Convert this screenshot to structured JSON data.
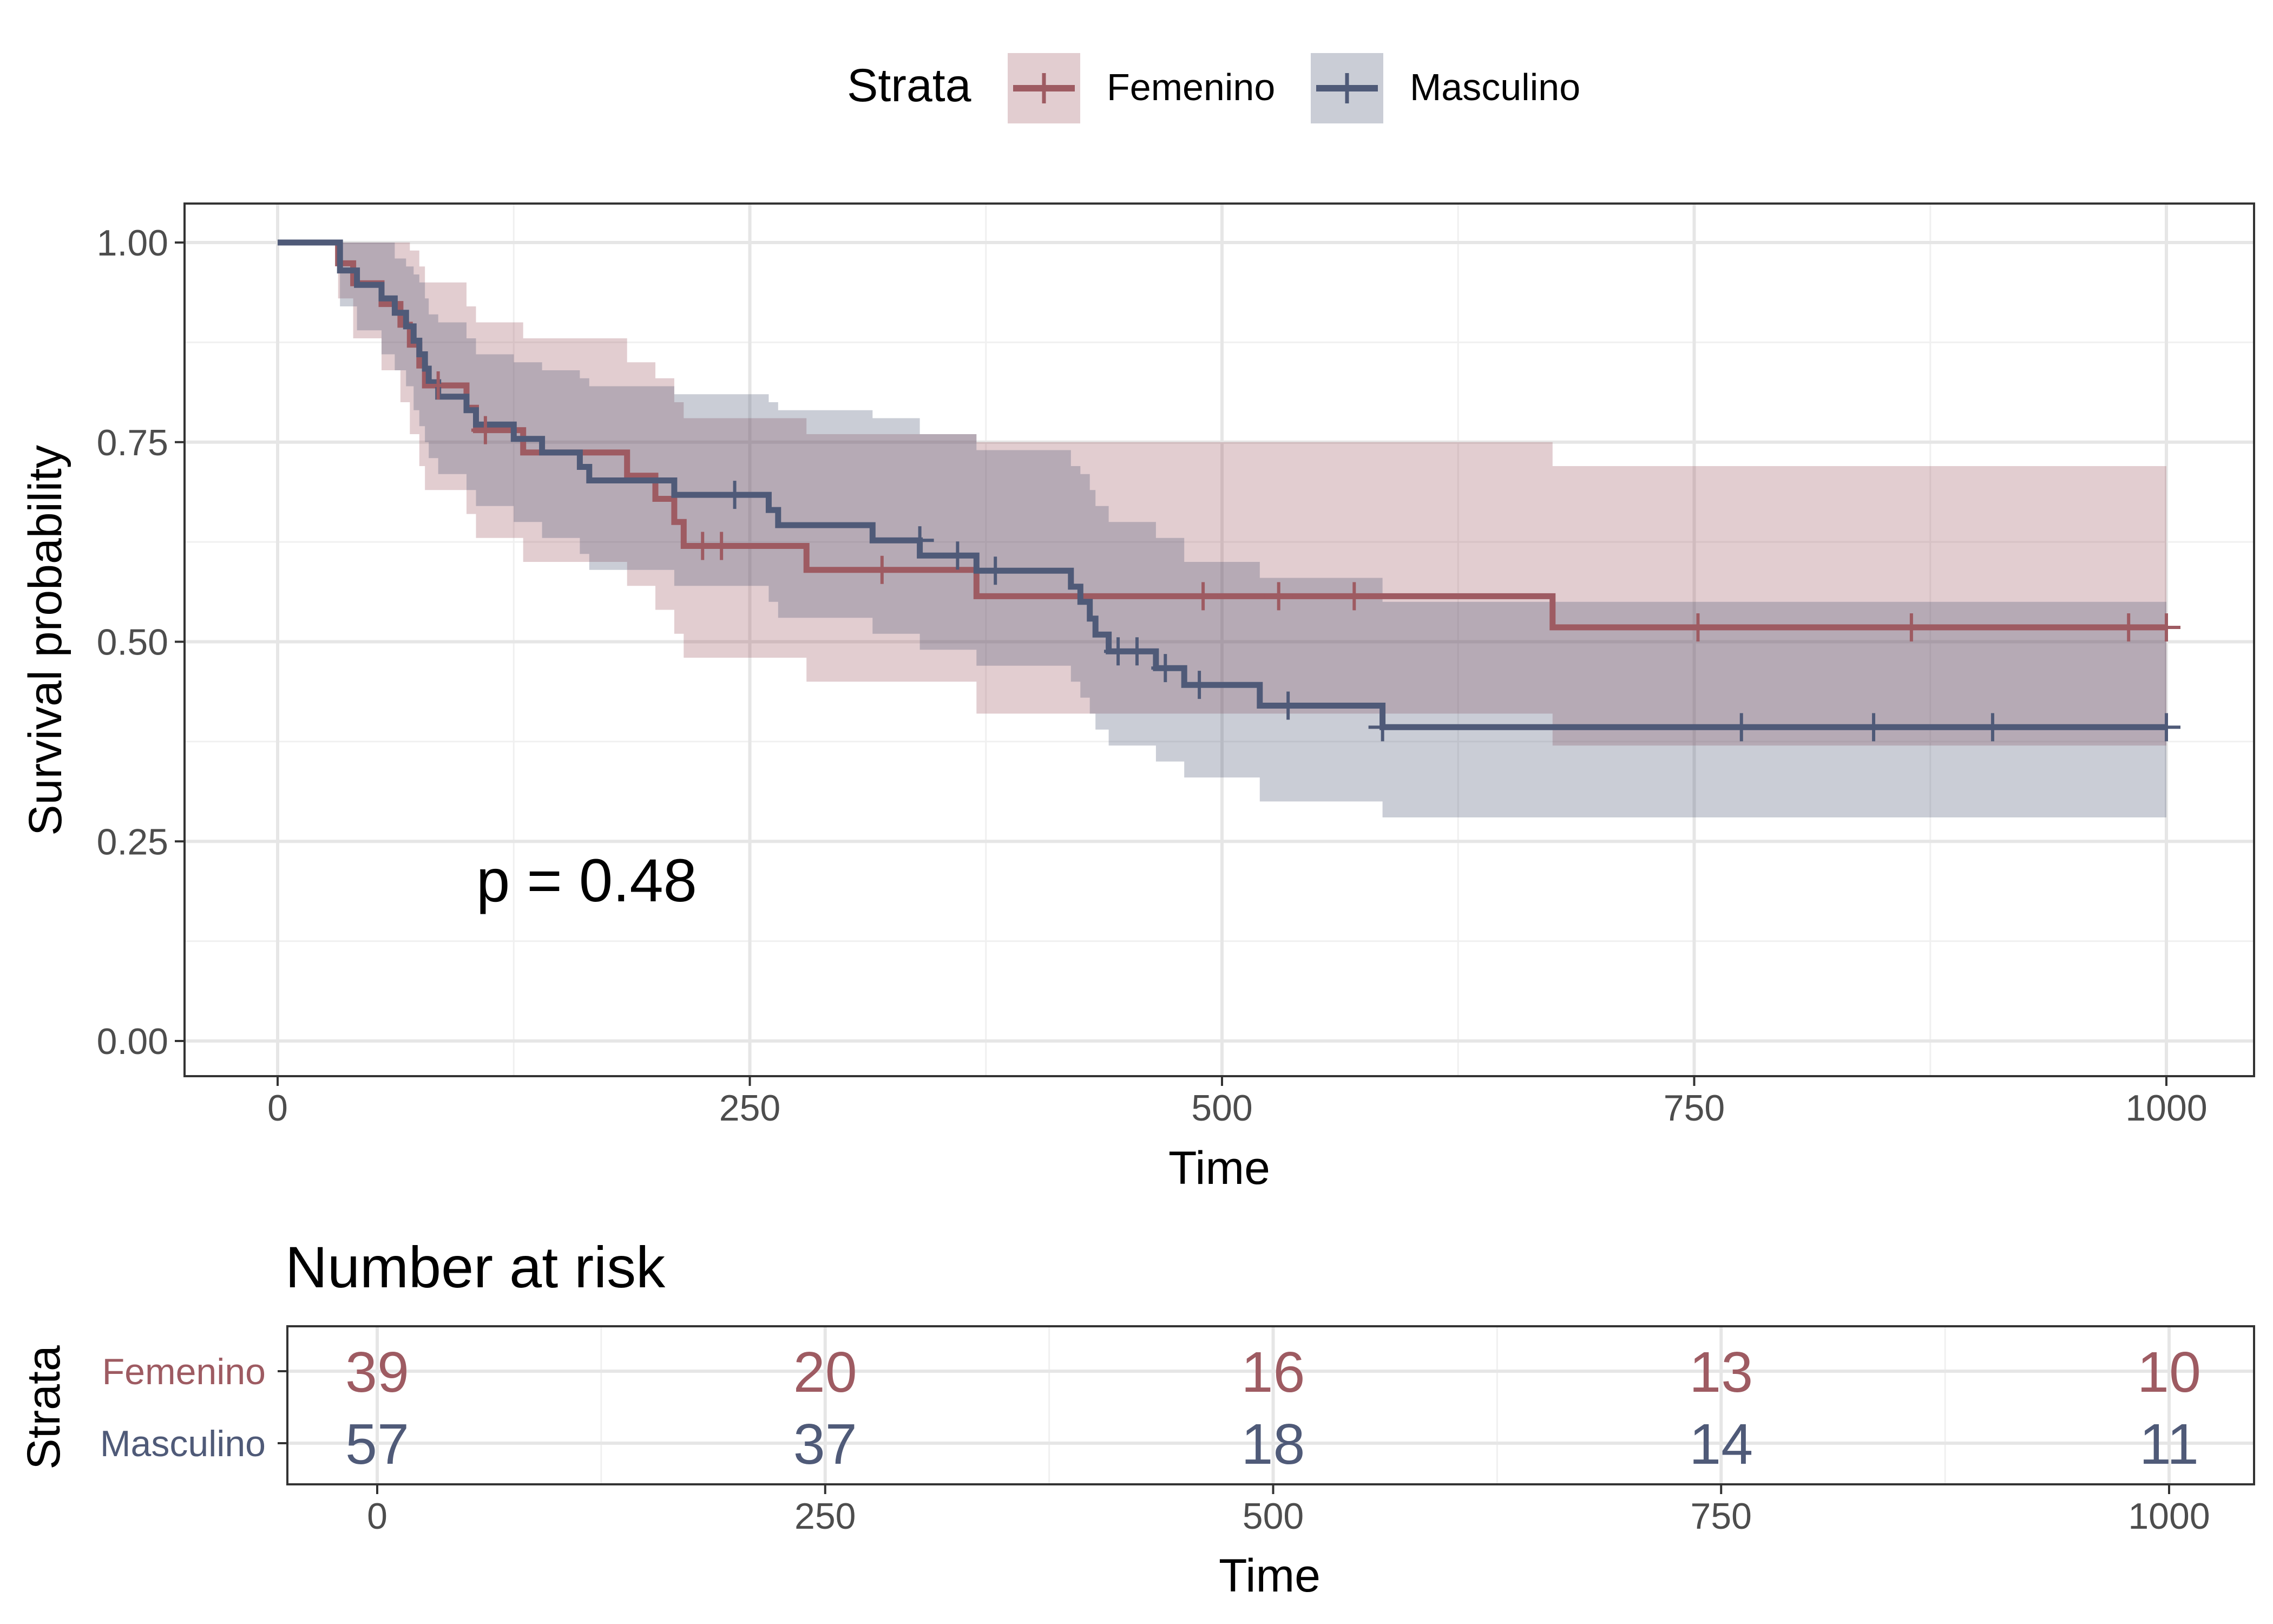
{
  "legend": {
    "title": "Strata",
    "items": [
      {
        "label": "Femenino",
        "color": "#9E5B62"
      },
      {
        "label": "Masculino",
        "color": "#4F5A78"
      }
    ]
  },
  "pvalue_text": "p = 0.48",
  "risk_table": {
    "title": "Number at risk",
    "ylabel": "Strata",
    "xlabel": "Time",
    "times": [
      0,
      250,
      500,
      750,
      1000
    ],
    "tick_labels": [
      "0",
      "250",
      "500",
      "750",
      "1000"
    ],
    "rows": [
      {
        "label": "Femenino",
        "color": "#9E5B62",
        "values": [
          "39",
          "20",
          "16",
          "13",
          "10"
        ]
      },
      {
        "label": "Masculino",
        "color": "#4F5A78",
        "values": [
          "57",
          "37",
          "18",
          "14",
          "11"
        ]
      }
    ]
  },
  "chart_data": {
    "type": "line",
    "subtype": "kaplan-meier step curves with confidence bands",
    "xlabel": "Time",
    "ylabel": "Survival probability",
    "xlim": [
      0,
      1000
    ],
    "ylim": [
      0,
      1
    ],
    "x_ticks": [
      0,
      250,
      500,
      750,
      1000
    ],
    "x_tick_labels": [
      "0",
      "250",
      "500",
      "750",
      "1000"
    ],
    "y_ticks": [
      0,
      0.25,
      0.5,
      0.75,
      1.0
    ],
    "y_tick_labels": [
      "0.00",
      "0.25",
      "0.50",
      "0.75",
      "1.00"
    ],
    "grid": true,
    "legend_position": "top",
    "series": [
      {
        "name": "Femenino",
        "color": "#9E5B62",
        "steps": [
          [
            0,
            1.0
          ],
          [
            32,
            0.974
          ],
          [
            40,
            0.949
          ],
          [
            55,
            0.923
          ],
          [
            65,
            0.897
          ],
          [
            70,
            0.872
          ],
          [
            75,
            0.846
          ],
          [
            78,
            0.821
          ],
          [
            100,
            0.793
          ],
          [
            105,
            0.765
          ],
          [
            130,
            0.737
          ],
          [
            185,
            0.708
          ],
          [
            200,
            0.679
          ],
          [
            210,
            0.65
          ],
          [
            215,
            0.62
          ],
          [
            280,
            0.59
          ],
          [
            370,
            0.557
          ],
          [
            675,
            0.518
          ],
          [
            1000,
            0.518
          ]
        ],
        "ci_lower": [
          [
            0,
            1.0
          ],
          [
            32,
            0.93
          ],
          [
            40,
            0.88
          ],
          [
            55,
            0.84
          ],
          [
            65,
            0.8
          ],
          [
            70,
            0.76
          ],
          [
            75,
            0.72
          ],
          [
            78,
            0.69
          ],
          [
            100,
            0.66
          ],
          [
            105,
            0.63
          ],
          [
            130,
            0.6
          ],
          [
            185,
            0.57
          ],
          [
            200,
            0.54
          ],
          [
            210,
            0.51
          ],
          [
            215,
            0.48
          ],
          [
            280,
            0.45
          ],
          [
            370,
            0.41
          ],
          [
            675,
            0.37
          ],
          [
            1000,
            0.37
          ]
        ],
        "ci_upper": [
          [
            0,
            1.0
          ],
          [
            32,
            1.0
          ],
          [
            40,
            1.0
          ],
          [
            55,
            1.0
          ],
          [
            65,
            1.0
          ],
          [
            70,
            0.99
          ],
          [
            75,
            0.97
          ],
          [
            78,
            0.95
          ],
          [
            100,
            0.92
          ],
          [
            105,
            0.9
          ],
          [
            130,
            0.88
          ],
          [
            185,
            0.85
          ],
          [
            200,
            0.83
          ],
          [
            210,
            0.8
          ],
          [
            215,
            0.78
          ],
          [
            280,
            0.76
          ],
          [
            370,
            0.75
          ],
          [
            675,
            0.72
          ],
          [
            1000,
            0.72
          ]
        ],
        "censored": [
          [
            85,
            0.821
          ],
          [
            110,
            0.765
          ],
          [
            225,
            0.62
          ],
          [
            235,
            0.62
          ],
          [
            320,
            0.59
          ],
          [
            490,
            0.557
          ],
          [
            530,
            0.557
          ],
          [
            570,
            0.557
          ],
          [
            752,
            0.518
          ],
          [
            865,
            0.518
          ],
          [
            980,
            0.518
          ],
          [
            1000,
            0.518
          ]
        ]
      },
      {
        "name": "Masculino",
        "color": "#4F5A78",
        "steps": [
          [
            0,
            1.0
          ],
          [
            33,
            0.965
          ],
          [
            42,
            0.947
          ],
          [
            55,
            0.93
          ],
          [
            62,
            0.912
          ],
          [
            68,
            0.895
          ],
          [
            72,
            0.877
          ],
          [
            75,
            0.86
          ],
          [
            78,
            0.842
          ],
          [
            80,
            0.825
          ],
          [
            85,
            0.807
          ],
          [
            100,
            0.79
          ],
          [
            105,
            0.772
          ],
          [
            125,
            0.754
          ],
          [
            140,
            0.737
          ],
          [
            160,
            0.719
          ],
          [
            165,
            0.702
          ],
          [
            210,
            0.684
          ],
          [
            260,
            0.665
          ],
          [
            265,
            0.646
          ],
          [
            315,
            0.627
          ],
          [
            340,
            0.608
          ],
          [
            370,
            0.589
          ],
          [
            420,
            0.569
          ],
          [
            425,
            0.55
          ],
          [
            430,
            0.529
          ],
          [
            433,
            0.509
          ],
          [
            440,
            0.488
          ],
          [
            465,
            0.467
          ],
          [
            480,
            0.446
          ],
          [
            520,
            0.42
          ],
          [
            585,
            0.393
          ],
          [
            1000,
            0.393
          ]
        ],
        "ci_lower": [
          [
            0,
            1.0
          ],
          [
            33,
            0.92
          ],
          [
            42,
            0.89
          ],
          [
            55,
            0.86
          ],
          [
            62,
            0.84
          ],
          [
            68,
            0.82
          ],
          [
            72,
            0.79
          ],
          [
            75,
            0.77
          ],
          [
            78,
            0.75
          ],
          [
            80,
            0.73
          ],
          [
            85,
            0.71
          ],
          [
            100,
            0.69
          ],
          [
            105,
            0.67
          ],
          [
            125,
            0.65
          ],
          [
            140,
            0.63
          ],
          [
            160,
            0.61
          ],
          [
            165,
            0.59
          ],
          [
            210,
            0.57
          ],
          [
            260,
            0.55
          ],
          [
            265,
            0.53
          ],
          [
            315,
            0.51
          ],
          [
            340,
            0.49
          ],
          [
            370,
            0.47
          ],
          [
            420,
            0.45
          ],
          [
            425,
            0.43
          ],
          [
            430,
            0.41
          ],
          [
            433,
            0.39
          ],
          [
            440,
            0.37
          ],
          [
            465,
            0.35
          ],
          [
            480,
            0.33
          ],
          [
            520,
            0.3
          ],
          [
            585,
            0.28
          ],
          [
            1000,
            0.28
          ]
        ],
        "ci_upper": [
          [
            0,
            1.0
          ],
          [
            33,
            1.0
          ],
          [
            42,
            1.0
          ],
          [
            55,
            1.0
          ],
          [
            62,
            0.98
          ],
          [
            68,
            0.97
          ],
          [
            72,
            0.96
          ],
          [
            75,
            0.95
          ],
          [
            78,
            0.93
          ],
          [
            80,
            0.91
          ],
          [
            85,
            0.9
          ],
          [
            100,
            0.88
          ],
          [
            105,
            0.86
          ],
          [
            125,
            0.85
          ],
          [
            140,
            0.84
          ],
          [
            160,
            0.83
          ],
          [
            165,
            0.82
          ],
          [
            210,
            0.81
          ],
          [
            260,
            0.8
          ],
          [
            265,
            0.79
          ],
          [
            315,
            0.78
          ],
          [
            340,
            0.76
          ],
          [
            370,
            0.74
          ],
          [
            420,
            0.72
          ],
          [
            425,
            0.71
          ],
          [
            430,
            0.69
          ],
          [
            433,
            0.67
          ],
          [
            440,
            0.65
          ],
          [
            465,
            0.63
          ],
          [
            480,
            0.6
          ],
          [
            520,
            0.58
          ],
          [
            585,
            0.55
          ],
          [
            1000,
            0.55
          ]
        ],
        "censored": [
          [
            242,
            0.684
          ],
          [
            340,
            0.627
          ],
          [
            360,
            0.608
          ],
          [
            380,
            0.589
          ],
          [
            445,
            0.488
          ],
          [
            455,
            0.488
          ],
          [
            470,
            0.467
          ],
          [
            488,
            0.446
          ],
          [
            535,
            0.42
          ],
          [
            585,
            0.393
          ],
          [
            775,
            0.393
          ],
          [
            845,
            0.393
          ],
          [
            908,
            0.393
          ],
          [
            1000,
            0.393
          ]
        ]
      }
    ]
  }
}
